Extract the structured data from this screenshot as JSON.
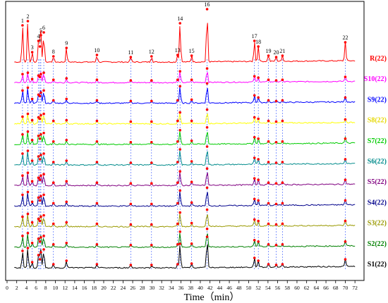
{
  "chart_data": {
    "type": "line",
    "title": "",
    "xlabel": "Time（min）",
    "ylabel": "",
    "xlim": [
      0,
      73
    ],
    "xticks": [
      0,
      2,
      4,
      6,
      8,
      10,
      12,
      14,
      16,
      18,
      20,
      22,
      24,
      26,
      28,
      30,
      32,
      34,
      36,
      38,
      40,
      42,
      44,
      46,
      48,
      50,
      52,
      54,
      56,
      58,
      60,
      62,
      64,
      66,
      68,
      70,
      72
    ],
    "grid": false,
    "legend": "right, one label per trace",
    "peaks": [
      {
        "label": "1",
        "time": 3.2
      },
      {
        "label": "2",
        "time": 4.3
      },
      {
        "label": "3",
        "time": 5.2
      },
      {
        "label": "4",
        "time": 6.5
      },
      {
        "label": "5",
        "time": 7.0
      },
      {
        "label": "6",
        "time": 7.6
      },
      {
        "label": "7",
        "time": 6.8
      },
      {
        "label": "8",
        "time": 9.6
      },
      {
        "label": "9",
        "time": 12.3
      },
      {
        "label": "10",
        "time": 18.6
      },
      {
        "label": "11",
        "time": 25.6
      },
      {
        "label": "12",
        "time": 29.9
      },
      {
        "label": "13",
        "time": 35.3
      },
      {
        "label": "14",
        "time": 35.8
      },
      {
        "label": "15",
        "time": 38.2
      },
      {
        "label": "16",
        "time": 41.4
      },
      {
        "label": "17",
        "time": 51.2
      },
      {
        "label": "18",
        "time": 52.0
      },
      {
        "label": "19",
        "time": 54.1
      },
      {
        "label": "20",
        "time": 55.7
      },
      {
        "label": "21",
        "time": 57.0
      },
      {
        "label": "22",
        "time": 70.0
      }
    ],
    "series": [
      {
        "name": "R(22)",
        "color": "#ff0000",
        "offset": 10,
        "heights": [
          52,
          58,
          14,
          30,
          38,
          42,
          22,
          8,
          20,
          10,
          7,
          8,
          10,
          55,
          9,
          75,
          30,
          22,
          9,
          7,
          9,
          28
        ]
      },
      {
        "name": "S10(22)",
        "color": "#ff00ff",
        "offset": 9,
        "heights": [
          12,
          14,
          5,
          10,
          12,
          14,
          8,
          4,
          6,
          4,
          3,
          3,
          4,
          16,
          4,
          20,
          9,
          7,
          4,
          3,
          4,
          8
        ]
      },
      {
        "name": "S9(22)",
        "color": "#0000ff",
        "offset": 8,
        "heights": [
          18,
          22,
          6,
          12,
          15,
          18,
          10,
          4,
          6,
          4,
          3,
          3,
          4,
          24,
          5,
          28,
          11,
          8,
          4,
          3,
          4,
          8
        ]
      },
      {
        "name": "S8(22)",
        "color": "#ffff00",
        "offset": 7,
        "heights": [
          10,
          14,
          5,
          9,
          12,
          14,
          7,
          4,
          5,
          4,
          3,
          3,
          4,
          16,
          4,
          20,
          9,
          7,
          4,
          3,
          4,
          6
        ]
      },
      {
        "name": "S7(22)",
        "color": "#00cc00",
        "offset": 6,
        "heights": [
          14,
          18,
          6,
          12,
          14,
          16,
          8,
          4,
          6,
          4,
          3,
          3,
          4,
          20,
          5,
          24,
          10,
          8,
          4,
          3,
          4,
          8
        ]
      },
      {
        "name": "S6(22)",
        "color": "#008b8b",
        "offset": 5,
        "heights": [
          16,
          20,
          6,
          12,
          14,
          16,
          8,
          4,
          6,
          4,
          3,
          3,
          4,
          22,
          5,
          26,
          10,
          8,
          4,
          3,
          4,
          8
        ]
      },
      {
        "name": "S5(22)",
        "color": "#800080",
        "offset": 4,
        "heights": [
          14,
          18,
          6,
          11,
          14,
          16,
          8,
          4,
          6,
          4,
          3,
          3,
          4,
          20,
          5,
          24,
          10,
          8,
          4,
          3,
          4,
          8
        ]
      },
      {
        "name": "S4(22)",
        "color": "#00008b",
        "offset": 3,
        "heights": [
          16,
          20,
          6,
          12,
          14,
          16,
          8,
          4,
          6,
          4,
          3,
          3,
          4,
          22,
          5,
          26,
          10,
          8,
          4,
          3,
          4,
          8
        ]
      },
      {
        "name": "S3(22)",
        "color": "#999900",
        "offset": 2,
        "heights": [
          14,
          18,
          6,
          11,
          14,
          16,
          8,
          4,
          6,
          4,
          3,
          3,
          4,
          20,
          5,
          24,
          10,
          8,
          4,
          3,
          4,
          8
        ]
      },
      {
        "name": "S2(22)",
        "color": "#008000",
        "offset": 1,
        "heights": [
          16,
          20,
          6,
          12,
          14,
          16,
          8,
          4,
          6,
          4,
          3,
          3,
          4,
          22,
          5,
          26,
          10,
          8,
          4,
          3,
          4,
          8
        ]
      },
      {
        "name": "S1(22)",
        "color": "#000000",
        "offset": 0,
        "heights": [
          24,
          28,
          8,
          18,
          22,
          26,
          12,
          5,
          10,
          5,
          4,
          4,
          5,
          34,
          6,
          44,
          14,
          10,
          5,
          4,
          5,
          12
        ]
      }
    ]
  }
}
